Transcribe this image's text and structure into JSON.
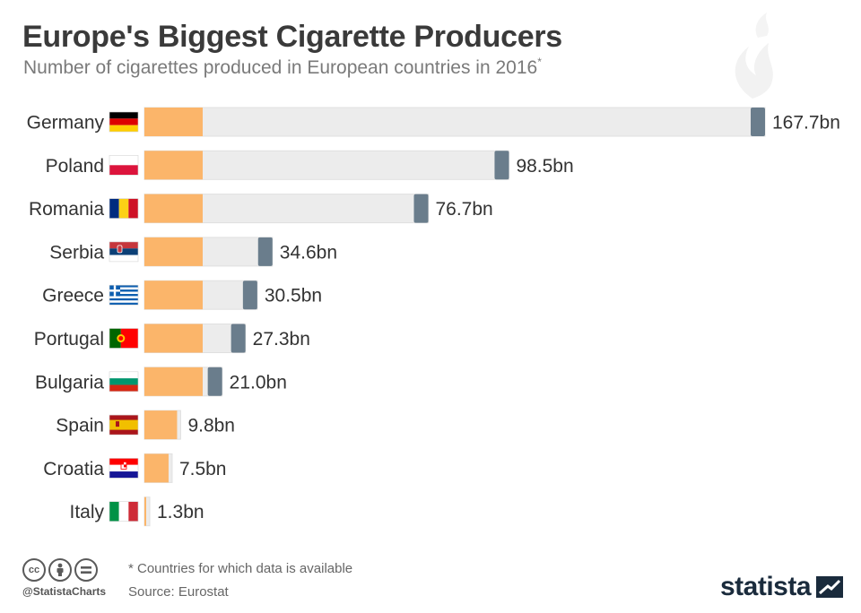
{
  "header": {
    "title": "Europe's Biggest Cigarette Producers",
    "subtitle": "Number of cigarettes produced in European countries in 2016",
    "subtitle_mark": "*"
  },
  "chart_data": {
    "type": "bar",
    "orientation": "horizontal",
    "title": "Europe's Biggest Cigarette Producers",
    "categories": [
      "Germany",
      "Poland",
      "Romania",
      "Serbia",
      "Greece",
      "Portugal",
      "Bulgaria",
      "Spain",
      "Croatia",
      "Italy"
    ],
    "values": [
      167.7,
      98.5,
      76.7,
      34.6,
      30.5,
      27.3,
      21.0,
      9.8,
      7.5,
      1.3
    ],
    "value_labels": [
      "167.7bn",
      "98.5bn",
      "76.7bn",
      "34.6bn",
      "30.5bn",
      "27.3bn",
      "21.0bn",
      "9.8bn",
      "7.5bn",
      "1.3bn"
    ],
    "flags": [
      "flag-germany",
      "flag-poland",
      "flag-romania",
      "flag-serbia",
      "flag-greece",
      "flag-portugal",
      "flag-bulgaria",
      "flag-spain",
      "flag-croatia",
      "flag-italy"
    ],
    "unit": "bn",
    "xlim": [
      0,
      167.7
    ],
    "xlabel": "",
    "ylabel": "",
    "grid": false
  },
  "colors": {
    "filter": "#fbb56a",
    "bar": "#ececec",
    "bar_border": "#e0e0e0",
    "tip": "#6a7d8c",
    "text": "#333333"
  },
  "footer": {
    "footnote": "* Countries for which data is available",
    "source": "Source: Eurostat",
    "handle": "@StatistaCharts",
    "brand": "statista",
    "license_icons": [
      "cc-icon",
      "by-icon",
      "nd-icon"
    ]
  }
}
